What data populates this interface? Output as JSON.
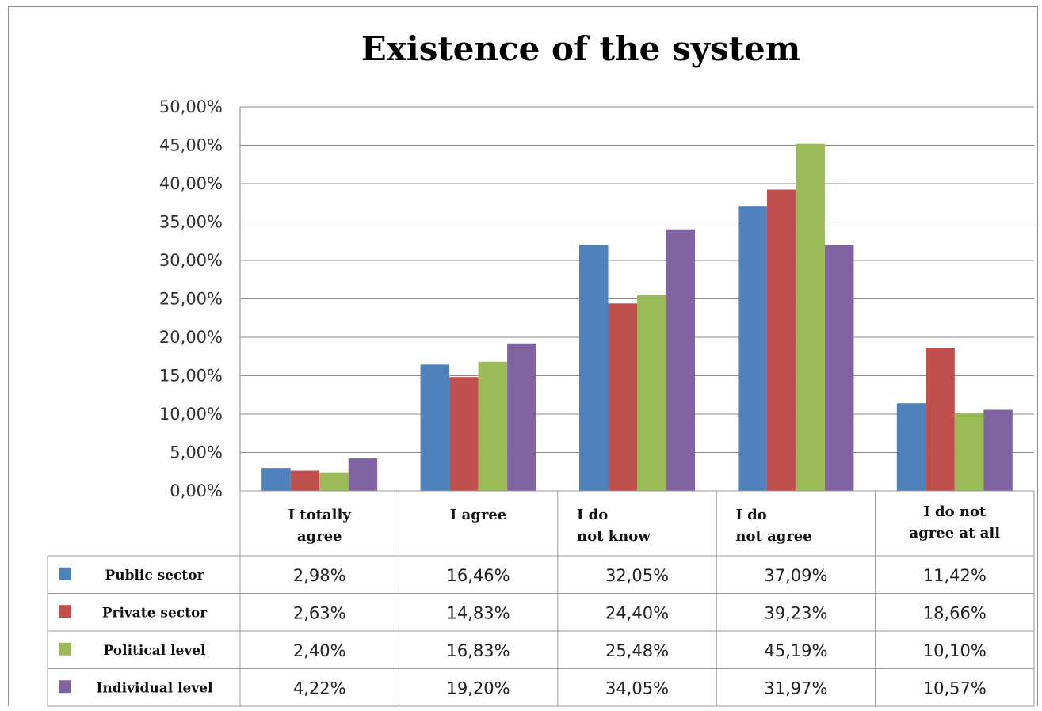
{
  "chart_data": {
    "type": "bar",
    "title": "Existence of the system",
    "categories": [
      [
        "I totally",
        "agree"
      ],
      [
        "I agree"
      ],
      [
        "I do",
        "not  know"
      ],
      [
        "I do",
        "not agree"
      ],
      [
        "I do not",
        "agree at all"
      ]
    ],
    "y_ticks": [
      "0,00%",
      "5,00%",
      "10,00%",
      "15,00%",
      "20,00%",
      "25,00%",
      "30,00%",
      "35,00%",
      "40,00%",
      "45,00%",
      "50,00%"
    ],
    "ylim": [
      0,
      50
    ],
    "grid": true,
    "legend": "data-table",
    "series": [
      {
        "name": "Public sector",
        "color": "#4f81bd",
        "values": [
          2.98,
          16.46,
          32.05,
          37.09,
          11.42
        ],
        "labels": [
          "2,98%",
          "16,46%",
          "32,05%",
          "37,09%",
          "11,42%"
        ]
      },
      {
        "name": "Private sector",
        "color": "#c0504d",
        "values": [
          2.63,
          14.83,
          24.4,
          39.23,
          18.66
        ],
        "labels": [
          "2,63%",
          "14,83%",
          "24,40%",
          "39,23%",
          "18,66%"
        ]
      },
      {
        "name": "Political level",
        "color": "#9bbb59",
        "values": [
          2.4,
          16.83,
          25.48,
          45.19,
          10.1
        ],
        "labels": [
          "2,40%",
          "16,83%",
          "25,48%",
          "45,19%",
          "10,10%"
        ]
      },
      {
        "name": "Individual level",
        "color": "#8064a2",
        "values": [
          4.22,
          19.2,
          34.05,
          31.97,
          10.57
        ],
        "labels": [
          "4,22%",
          "19,20%",
          "34,05%",
          "31,97%",
          "10,57%"
        ]
      }
    ]
  }
}
